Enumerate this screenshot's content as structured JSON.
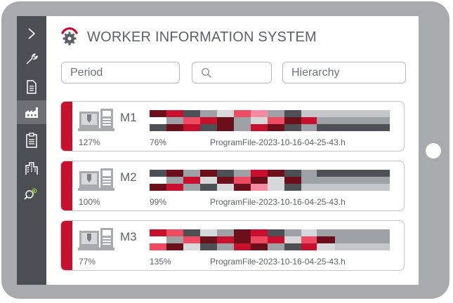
{
  "app": {
    "title": "WORKER INFORMATION SYSTEM"
  },
  "colors": {
    "accent": "#c8102e",
    "sidebar": "#4b4f54",
    "frame": "#a8aaad"
  },
  "sidebar": {
    "items": [
      {
        "icon": "chevron-right-icon",
        "label": ">"
      },
      {
        "icon": "wrench-icon"
      },
      {
        "icon": "document-icon"
      },
      {
        "icon": "factory-icon",
        "active": true
      },
      {
        "icon": "clipboard-icon"
      },
      {
        "icon": "building-icon"
      },
      {
        "icon": "search-refresh-icon"
      }
    ]
  },
  "filters": {
    "period": "Period",
    "search_placeholder": "",
    "hierarchy": "Hierarchy"
  },
  "machines": [
    {
      "name": "M1",
      "efficiency": "127%",
      "quality": "76%",
      "program": "ProgramFile-2023-10-16-04-25-43.h",
      "strips": [
        [
          "#6b0f1a",
          "#c8102e",
          "#4d5055",
          "#9ea1a5",
          "#d6d8da",
          "#ee4b63",
          "#f58aa0",
          "#9ea1a5",
          "#4d5055",
          "#c4c6c9",
          "#c4c6c9",
          "#c4c6c9",
          "#c4c6c9",
          "#c4c6c9"
        ],
        [
          "#ffffff",
          "#9ea1a5",
          "#ee4b63",
          "#c8102e",
          "#6b0f1a",
          "#9ea1a5",
          "#d6d8da",
          "#ee4b63",
          "#6b0f1a",
          "#c8102e",
          "#9ea1a5",
          "#9ea1a5",
          "#9ea1a5",
          "#9ea1a5"
        ],
        [
          "#4d5055",
          "#6b0f1a",
          "#c8102e",
          "#4d5055",
          "#6b0f1a",
          "#9ea1a5",
          "#c8102e",
          "#6b0f1a",
          "#4d5055",
          "#9ea1a5",
          "#4d5055",
          "#4d5055",
          "#4d5055",
          "#4d5055"
        ]
      ]
    },
    {
      "name": "M2",
      "efficiency": "100%",
      "quality": "99%",
      "program": "ProgramFile-2023-10-16-04-25-43.h",
      "strips": [
        [
          "#4d5055",
          "#6b0f1a",
          "#9ea1a5",
          "#6b0f1a",
          "#4d5055",
          "#9ea1a5",
          "#c8102e",
          "#6b0f1a",
          "#4d5055",
          "#9ea1a5",
          "#4d5055",
          "#4d5055",
          "#4d5055",
          "#4d5055"
        ],
        [
          "#ffffff",
          "#9ea1a5",
          "#c8102e",
          "#d6d8da",
          "#6b0f1a",
          "#ee4b63",
          "#6b0f1a",
          "#d6d8da",
          "#6b0f1a",
          "#9ea1a5",
          "#9ea1a5",
          "#9ea1a5",
          "#9ea1a5",
          "#9ea1a5"
        ],
        [
          "#6b0f1a",
          "#c8102e",
          "#9ea1a5",
          "#4d5055",
          "#d6d8da",
          "#6b0f1a",
          "#f58aa0",
          "#d6d8da",
          "#4d5055",
          "#c4c6c9",
          "#c4c6c9",
          "#c4c6c9",
          "#c4c6c9",
          "#c4c6c9"
        ]
      ]
    },
    {
      "name": "M3",
      "efficiency": "77%",
      "quality": "135%",
      "program": "ProgramFile-2023-10-16-04-25-43.h",
      "strips": [
        [
          "#c8102e",
          "#ee4b63",
          "#4d5055",
          "#d6d8da",
          "#9ea1a5",
          "#6b0f1a",
          "#c8102e",
          "#4d5055",
          "#9ea1a5",
          "#d6d8da",
          "#9ea1a5",
          "#9ea1a5",
          "#9ea1a5",
          "#9ea1a5"
        ],
        [
          "#ffffff",
          "#9ea1a5",
          "#ee4b63",
          "#6b0f1a",
          "#c8102e",
          "#6b0f1a",
          "#ee4b63",
          "#c8102e",
          "#d6d8da",
          "#ee4b63",
          "#6b0f1a",
          "#9ea1a5",
          "#9ea1a5",
          "#9ea1a5"
        ],
        [
          "#ee4b63",
          "#6b0f1a",
          "#d6d8da",
          "#4d5055",
          "#9ea1a5",
          "#c8102e",
          "#6b0f1a",
          "#9ea1a5",
          "#4d5055",
          "#c8102e",
          "#d6d8da",
          "#c4c6c9",
          "#c4c6c9",
          "#c4c6c9"
        ]
      ]
    }
  ]
}
